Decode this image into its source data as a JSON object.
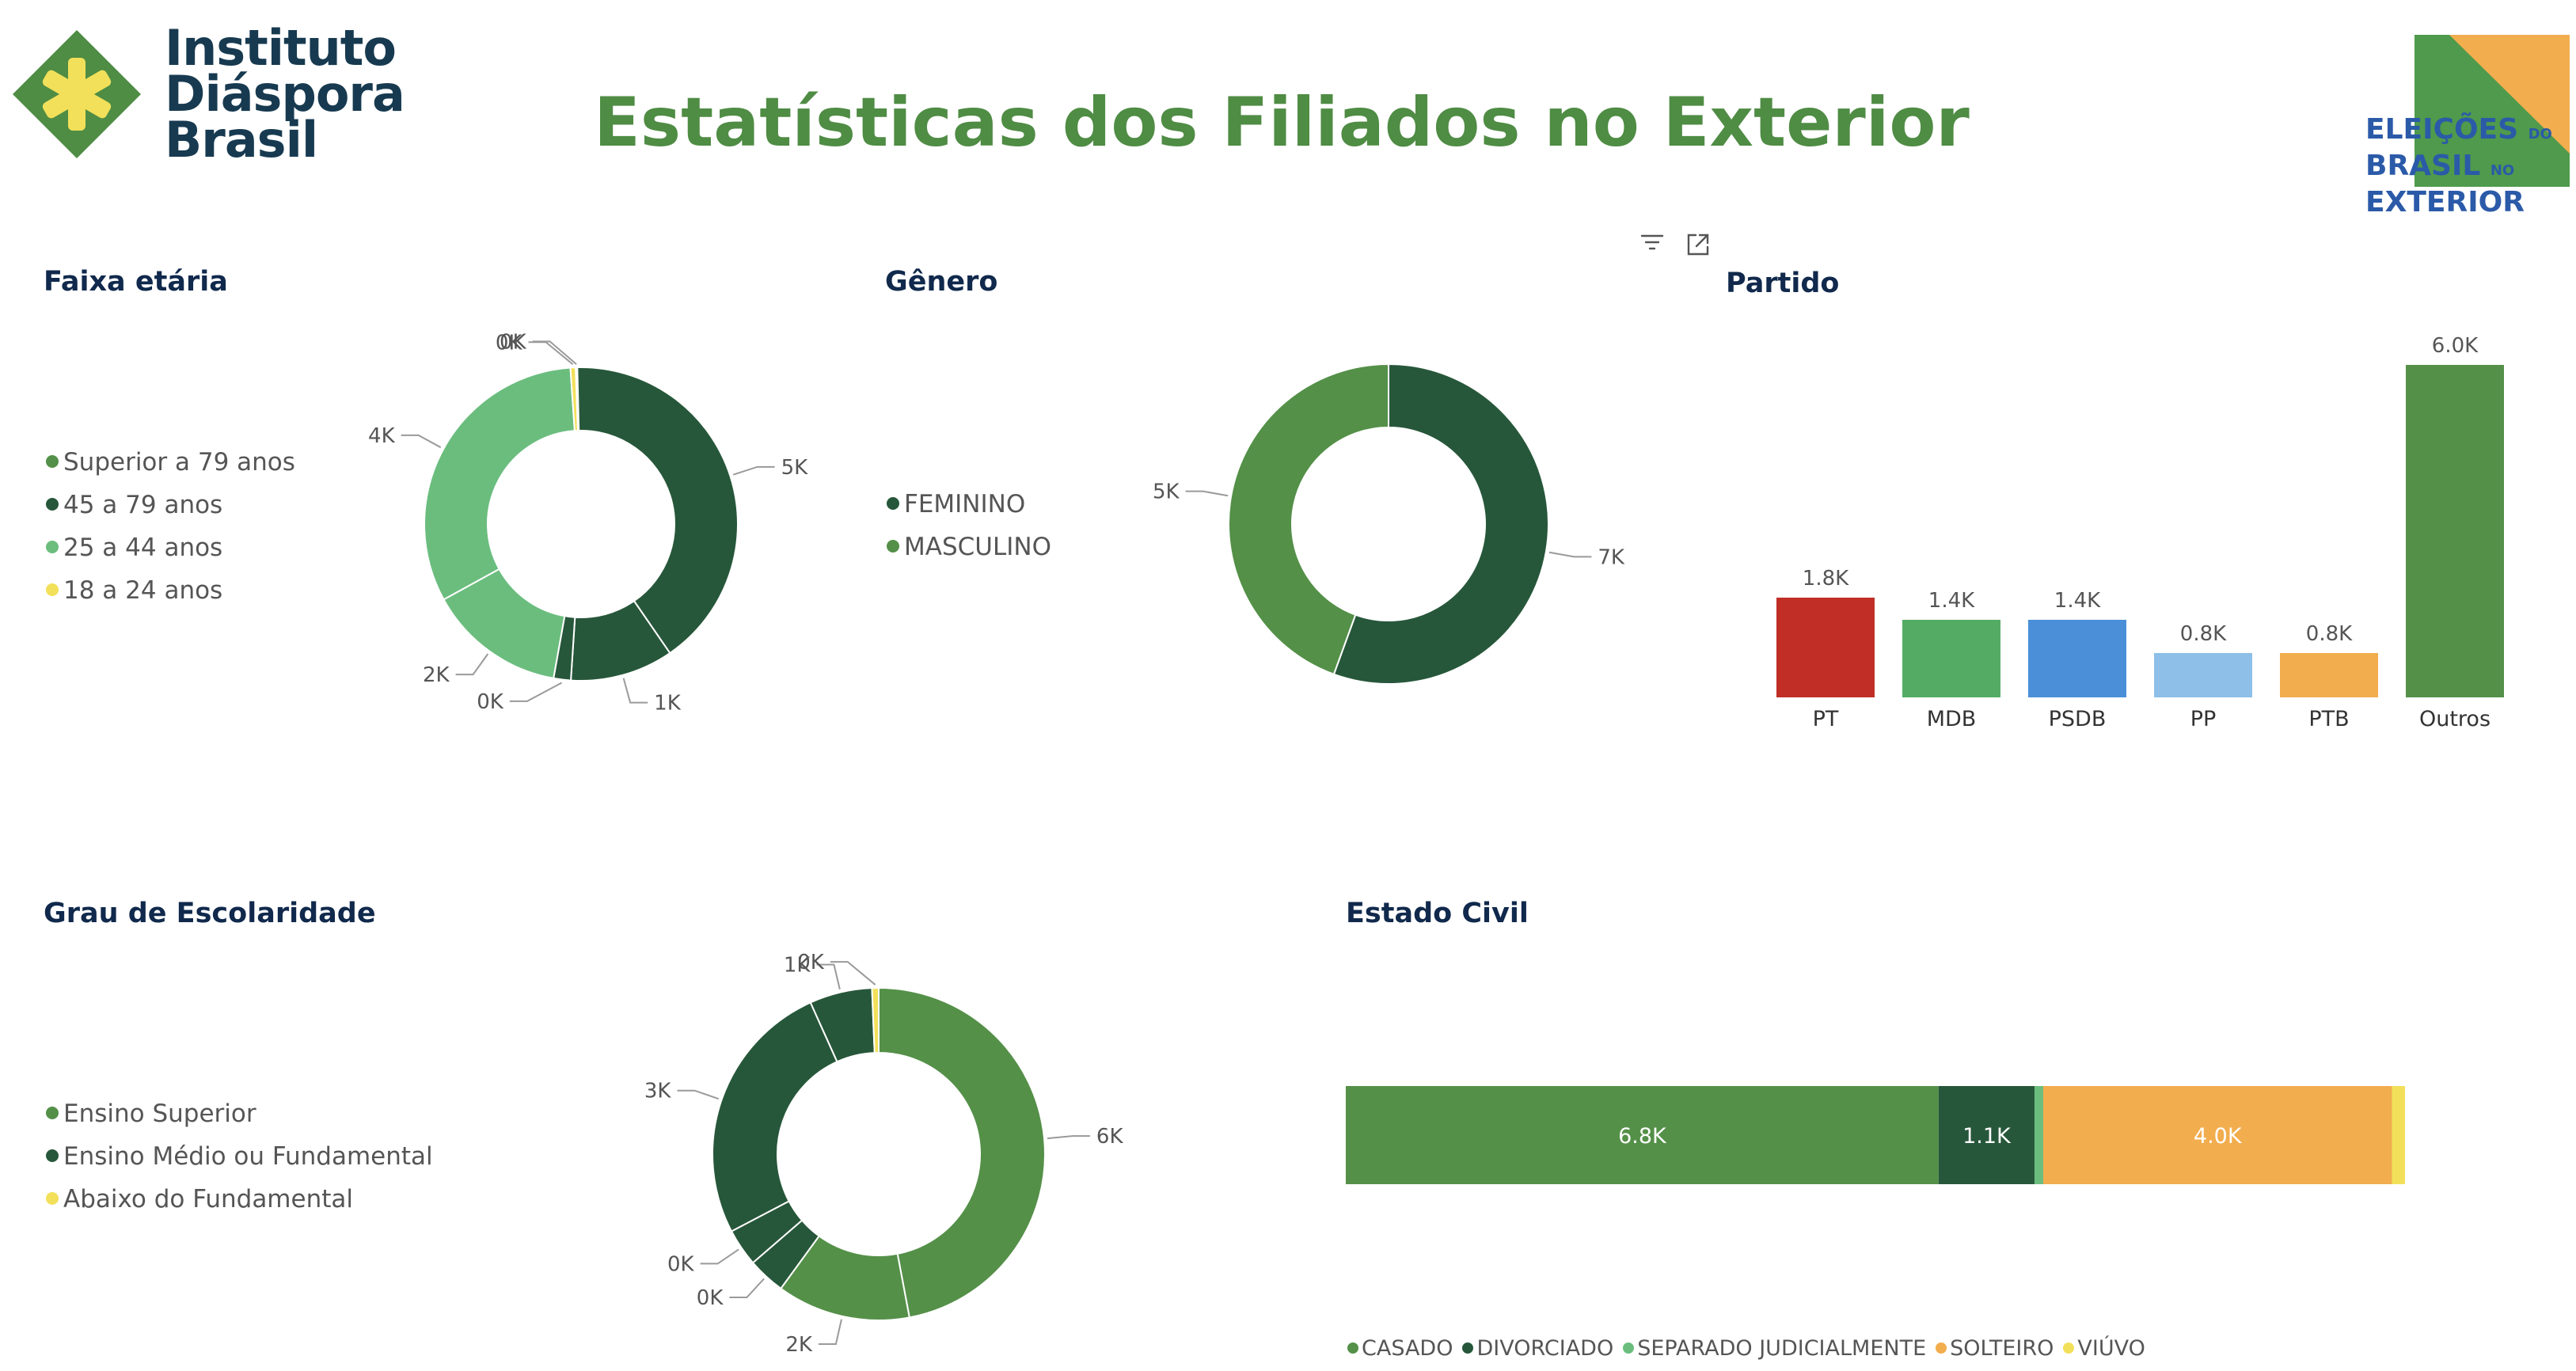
{
  "header": {
    "brand_line1": "Instituto",
    "brand_line2": "Diáspora",
    "brand_line3": "Brasil",
    "title": "Estatísticas dos Filiados no Exterior",
    "elections_logo": {
      "line1": "ELEIÇÕES",
      "line1_small": "DO",
      "line2": "BRASIL",
      "line2_small": "NO",
      "line3": "EXTERIOR"
    }
  },
  "toolbar": {
    "icons": [
      "filter-icon",
      "focus-mode-icon"
    ]
  },
  "colors": {
    "title_green": "#4f8c44",
    "dark_green": "#27573a",
    "mid_green": "#549048",
    "light_green": "#6bbd7e",
    "yellow": "#f2e05a",
    "navy": "#10294c",
    "pt_red": "#c02e26",
    "mdb_green": "#54ac64",
    "psdb_blue": "#4a8fd8",
    "pp_lightblue": "#8dbfe8",
    "ptb_orange": "#f2ad4e",
    "solteiro_orange": "#f2ad4e"
  },
  "faixa_etaria": {
    "title": "Faixa etária",
    "legend": [
      {
        "label": "Superior a 79 anos",
        "color": "#549048"
      },
      {
        "label": "45 a 79 anos",
        "color": "#27573a"
      },
      {
        "label": "25 a 44 anos",
        "color": "#6bbd7e"
      },
      {
        "label": "18 a 24 anos",
        "color": "#f2e05a"
      }
    ]
  },
  "genero": {
    "title": "Gênero",
    "legend": [
      {
        "label": "FEMININO",
        "color": "#27573a"
      },
      {
        "label": "MASCULINO",
        "color": "#549048"
      }
    ]
  },
  "partido": {
    "title": "Partido"
  },
  "escolaridade": {
    "title": "Grau de Escolaridade",
    "legend": [
      {
        "label": "Ensino Superior",
        "color": "#549048"
      },
      {
        "label": "Ensino Médio ou Fundamental",
        "color": "#27573a"
      },
      {
        "label": "Abaixo do Fundamental",
        "color": "#f2e05a"
      }
    ]
  },
  "estado_civil": {
    "title": "Estado Civil",
    "legend": [
      {
        "label": "CASADO",
        "color": "#549048"
      },
      {
        "label": "DIVORCIADO",
        "color": "#27573a"
      },
      {
        "label": "SEPARADO JUDICIALMENTE",
        "color": "#6bbd7e"
      },
      {
        "label": "SOLTEIRO",
        "color": "#f2ad4e"
      },
      {
        "label": "VIÚVO",
        "color": "#f2e05a"
      }
    ]
  },
  "chart_data": [
    {
      "id": "faixa_etaria",
      "type": "pie",
      "title": "Faixa etária",
      "start_angle": -2,
      "slices": [
        {
          "label": "",
          "value": 0.02,
          "color": "#f2e05a",
          "data_label": "0K"
        },
        {
          "label": "",
          "value": 4.6,
          "color": "#27573a",
          "data_label": "5K"
        },
        {
          "label": "",
          "value": 1.2,
          "color": "#27573a",
          "data_label": "1K"
        },
        {
          "label": "",
          "value": 0.2,
          "color": "#27573a",
          "data_label": "0K"
        },
        {
          "label": "",
          "value": 1.6,
          "color": "#6bbd7e",
          "data_label": "2K"
        },
        {
          "label": "",
          "value": 3.6,
          "color": "#6bbd7e",
          "data_label": "4K"
        },
        {
          "label": "",
          "value": 0.06,
          "color": "#f2e05a",
          "data_label": "0K"
        }
      ]
    },
    {
      "id": "genero",
      "type": "pie",
      "title": "Gênero",
      "start_angle": 0,
      "slices": [
        {
          "label": "FEMININO",
          "value": 6.5,
          "color": "#27573a",
          "data_label": "7K"
        },
        {
          "label": "MASCULINO",
          "value": 5.2,
          "color": "#549048",
          "data_label": "5K"
        }
      ]
    },
    {
      "id": "partido",
      "type": "bar",
      "title": "Partido",
      "categories": [
        "PT",
        "MDB",
        "PSDB",
        "PP",
        "PTB",
        "Outros"
      ],
      "values": [
        1.8,
        1.4,
        1.4,
        0.8,
        0.8,
        6.0
      ],
      "data_labels": [
        "1.8K",
        "1.4K",
        "1.4K",
        "0.8K",
        "0.8K",
        "6.0K"
      ],
      "colors": [
        "#c02e26",
        "#54ac64",
        "#4a8fd8",
        "#8dbfe8",
        "#f2ad4e",
        "#549048"
      ],
      "ylim": [
        0,
        6.0
      ]
    },
    {
      "id": "escolaridade",
      "type": "pie",
      "title": "Grau de Escolaridade",
      "start_angle": 0,
      "slices": [
        {
          "label": "",
          "value": 5.8,
          "color": "#549048",
          "data_label": "6K"
        },
        {
          "label": "",
          "value": 1.6,
          "color": "#549048",
          "data_label": "2K"
        },
        {
          "label": "",
          "value": 0.45,
          "color": "#27573a",
          "data_label": "0K"
        },
        {
          "label": "",
          "value": 0.45,
          "color": "#27573a",
          "data_label": "0K"
        },
        {
          "label": "",
          "value": 3.2,
          "color": "#27573a",
          "data_label": "3K"
        },
        {
          "label": "",
          "value": 0.75,
          "color": "#27573a",
          "data_label": "1K"
        },
        {
          "label": "",
          "value": 0.08,
          "color": "#f2e05a",
          "data_label": "0K"
        }
      ]
    },
    {
      "id": "estado_civil",
      "type": "bar",
      "orientation": "horizontal-stacked",
      "title": "Estado Civil",
      "segments": [
        {
          "label": "CASADO",
          "value": 6.8,
          "color": "#549048",
          "data_label": "6.8K"
        },
        {
          "label": "DIVORCIADO",
          "value": 1.1,
          "color": "#27573a",
          "data_label": "1.1K"
        },
        {
          "label": "SEPARADO JUDICIALMENTE",
          "value": 0.1,
          "color": "#6bbd7e",
          "data_label": ""
        },
        {
          "label": "SOLTEIRO",
          "value": 4.0,
          "color": "#f2ad4e",
          "data_label": "4.0K"
        },
        {
          "label": "VIÚVO",
          "value": 0.15,
          "color": "#f2e05a",
          "data_label": ""
        }
      ]
    }
  ]
}
